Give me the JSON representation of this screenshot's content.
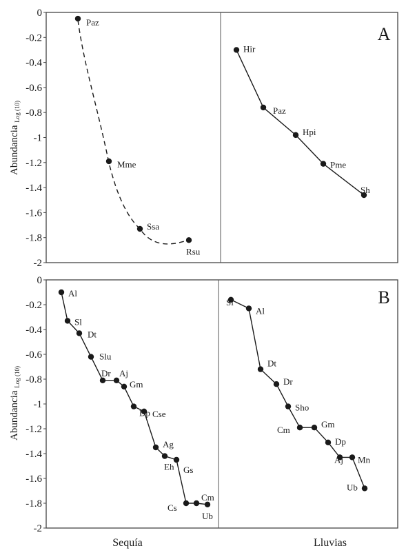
{
  "chart_data": [
    {
      "type": "line",
      "panel_label": "A",
      "ylabel": "Abundancia",
      "ylabel_subscript": "Log (10)",
      "ylim": [
        -2,
        0
      ],
      "yticks": [
        "0",
        "-0.2",
        "-0.4",
        "-0.6",
        "-0.8",
        "-1",
        "-1.2",
        "-1.4",
        "-1.6",
        "-1.8",
        "-2"
      ],
      "series": [
        {
          "group": "Sequía",
          "style": "dashed",
          "points": [
            {
              "label": "Paz",
              "rank": 1,
              "y": -0.05
            },
            {
              "label": "Mme",
              "rank": 2,
              "y": -1.19
            },
            {
              "label": "Ssa",
              "rank": 3,
              "y": -1.73
            },
            {
              "label": "Rsu",
              "rank": 4,
              "y": -1.82
            }
          ]
        },
        {
          "group": "Lluvias",
          "style": "solid",
          "points": [
            {
              "label": "Hir",
              "rank": 1,
              "y": -0.3
            },
            {
              "label": "Paz",
              "rank": 2,
              "y": -0.76
            },
            {
              "label": "Hpi",
              "rank": 3,
              "y": -0.98
            },
            {
              "label": "Pme",
              "rank": 4,
              "y": -1.21
            },
            {
              "label": "Sh",
              "rank": 5,
              "y": -1.46
            }
          ]
        }
      ]
    },
    {
      "type": "line",
      "panel_label": "B",
      "ylabel": "Abundancia",
      "ylabel_subscript": "Log (10)",
      "ylim": [
        -2,
        0
      ],
      "yticks": [
        "0",
        "-0.2",
        "-0.4",
        "-0.6",
        "-0.8",
        "-1",
        "-1.2",
        "-1.4",
        "-1.6",
        "-1.8",
        "-2"
      ],
      "categories": [
        "Sequía",
        "Lluvias"
      ],
      "series": [
        {
          "group": "Sequía",
          "style": "solid",
          "points": [
            {
              "label": "Al",
              "rank": 1,
              "y": -0.1
            },
            {
              "label": "Sl",
              "rank": 2,
              "y": -0.33
            },
            {
              "label": "Dt",
              "rank": 3,
              "y": -0.43
            },
            {
              "label": "Slu",
              "rank": 4,
              "y": -0.62
            },
            {
              "label": "Dr",
              "rank": 5,
              "y": -0.81
            },
            {
              "label": "Aj",
              "rank": 6,
              "y": -0.81
            },
            {
              "label": "Gm",
              "rank": 7,
              "y": -0.86
            },
            {
              "label": "Dp",
              "rank": 8,
              "y": -1.02
            },
            {
              "label": "Cse",
              "rank": 9,
              "y": -1.06
            },
            {
              "label": "Ag",
              "rank": 10,
              "y": -1.35
            },
            {
              "label": "Eh",
              "rank": 11,
              "y": -1.42
            },
            {
              "label": "Gs",
              "rank": 12,
              "y": -1.45
            },
            {
              "label": "Cs",
              "rank": 13,
              "y": -1.8
            },
            {
              "label": "Cm",
              "rank": 14,
              "y": -1.8
            },
            {
              "label": "Ub",
              "rank": 15,
              "y": -1.81
            }
          ]
        },
        {
          "group": "Lluvias",
          "style": "solid",
          "points": [
            {
              "label": "Sl",
              "rank": 1,
              "y": -0.16
            },
            {
              "label": "Al",
              "rank": 2,
              "y": -0.23
            },
            {
              "label": "Dt",
              "rank": 3,
              "y": -0.72
            },
            {
              "label": "Dr",
              "rank": 4,
              "y": -0.84
            },
            {
              "label": "Sho",
              "rank": 5,
              "y": -1.02
            },
            {
              "label": "Cm",
              "rank": 6,
              "y": -1.19
            },
            {
              "label": "Gm",
              "rank": 7,
              "y": -1.19
            },
            {
              "label": "Dp",
              "rank": 8,
              "y": -1.31
            },
            {
              "label": "Aj",
              "rank": 9,
              "y": -1.43
            },
            {
              "label": "Mn",
              "rank": 10,
              "y": -1.43
            },
            {
              "label": "Ub",
              "rank": 11,
              "y": -1.68
            }
          ]
        }
      ]
    }
  ]
}
